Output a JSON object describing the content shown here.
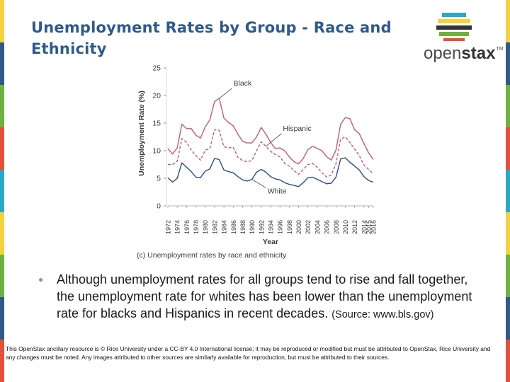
{
  "slide": {
    "title": "Unemployment Rates by Group - Race and Ethnicity",
    "edge_colors": [
      "#f5d23b",
      "#2e5a8c",
      "#6cb33e",
      "#e0533a",
      "#2ba8c7",
      "#f5d23b",
      "#6cb33e",
      "#2e5a8c",
      "#e0533a"
    ]
  },
  "logo": {
    "text_light": "open",
    "text_bold": "stax",
    "tm": "TM",
    "bar_colors": [
      "#2ba8c7",
      "#f5d23b",
      "#333333",
      "#6cb33e",
      "#e0533a"
    ]
  },
  "chart_data": {
    "type": "line",
    "xlabel": "Year",
    "ylabel": "Unemployment Rate (%)",
    "caption": "(c) Unemployment rates by race and ethnicity",
    "ylim": [
      0,
      25
    ],
    "yticks": [
      0,
      5,
      10,
      15,
      20,
      25
    ],
    "xlim": [
      1972,
      2016
    ],
    "xticks": [
      1972,
      1974,
      1976,
      1978,
      1980,
      1982,
      1984,
      1986,
      1988,
      1990,
      1992,
      1994,
      1996,
      1998,
      2000,
      2002,
      2004,
      2006,
      2008,
      2010,
      2012,
      2014,
      2015,
      2016
    ],
    "x": [
      1972,
      1973,
      1974,
      1975,
      1976,
      1977,
      1978,
      1979,
      1980,
      1981,
      1982,
      1983,
      1984,
      1985,
      1986,
      1987,
      1988,
      1989,
      1990,
      1991,
      1992,
      1993,
      1994,
      1995,
      1996,
      1997,
      1998,
      1999,
      2000,
      2001,
      2002,
      2003,
      2004,
      2005,
      2006,
      2007,
      2008,
      2009,
      2010,
      2011,
      2012,
      2013,
      2014,
      2015,
      2016
    ],
    "series": [
      {
        "name": "Black",
        "style": "solid",
        "color": "#c65a78",
        "values": [
          10.4,
          9.4,
          10.5,
          14.8,
          14.0,
          14.0,
          12.8,
          12.3,
          14.3,
          15.6,
          18.9,
          19.5,
          15.9,
          15.1,
          14.5,
          13.0,
          11.7,
          11.4,
          11.4,
          12.5,
          14.2,
          13.0,
          11.5,
          10.4,
          10.5,
          10.0,
          8.9,
          8.0,
          7.6,
          8.6,
          10.2,
          10.8,
          10.4,
          10.0,
          8.9,
          8.3,
          10.1,
          14.8,
          16.0,
          15.8,
          13.8,
          13.1,
          11.3,
          9.6,
          8.4
        ]
      },
      {
        "name": "Hispanic",
        "style": "dashed",
        "color": "#c65a78",
        "values": [
          7.5,
          7.5,
          8.1,
          12.2,
          11.5,
          10.1,
          9.1,
          8.3,
          10.1,
          10.4,
          13.8,
          13.7,
          10.7,
          10.5,
          10.6,
          8.8,
          8.2,
          8.0,
          8.2,
          10.0,
          11.6,
          10.8,
          9.9,
          9.3,
          8.9,
          7.7,
          7.2,
          6.4,
          5.7,
          6.6,
          7.5,
          7.7,
          7.0,
          6.0,
          5.2,
          5.6,
          7.6,
          12.1,
          12.5,
          11.5,
          10.3,
          9.1,
          7.4,
          6.6,
          5.8
        ]
      },
      {
        "name": "White",
        "style": "solid",
        "color": "#2e4a8c",
        "values": [
          5.1,
          4.3,
          5.0,
          7.8,
          7.0,
          6.2,
          5.2,
          5.1,
          6.3,
          6.7,
          8.6,
          8.4,
          6.5,
          6.2,
          6.0,
          5.3,
          4.7,
          4.5,
          4.8,
          6.1,
          6.6,
          6.1,
          5.3,
          4.9,
          4.7,
          4.2,
          3.9,
          3.7,
          3.5,
          4.2,
          5.1,
          5.2,
          4.8,
          4.4,
          4.0,
          4.1,
          5.2,
          8.5,
          8.7,
          7.9,
          7.2,
          6.5,
          5.3,
          4.6,
          4.3
        ]
      }
    ],
    "annotations": [
      {
        "text": "Black",
        "series": "Black",
        "at_year": 1983
      },
      {
        "text": "Hispanic",
        "series": "Hispanic",
        "at_year": 1993
      },
      {
        "text": "White",
        "series": "White",
        "at_year": 1990
      }
    ]
  },
  "bullet": {
    "text": "Although unemployment rates for all groups tend to rise and fall together, the unemployment rate for whites has been lower than the unemployment rate for blacks and Hispanics in recent decades.",
    "source": "(Source: www.bls.gov)"
  },
  "footer": "This OpenStax ancillary resource is © Rice University under a CC-BY 4.0 International license; it may be reproduced or modified but must be attributed to OpenStax, Rice University and any changes must be noted. Any images attributed to other sources are similarly available for reproduction, but must be attributed to their sources."
}
